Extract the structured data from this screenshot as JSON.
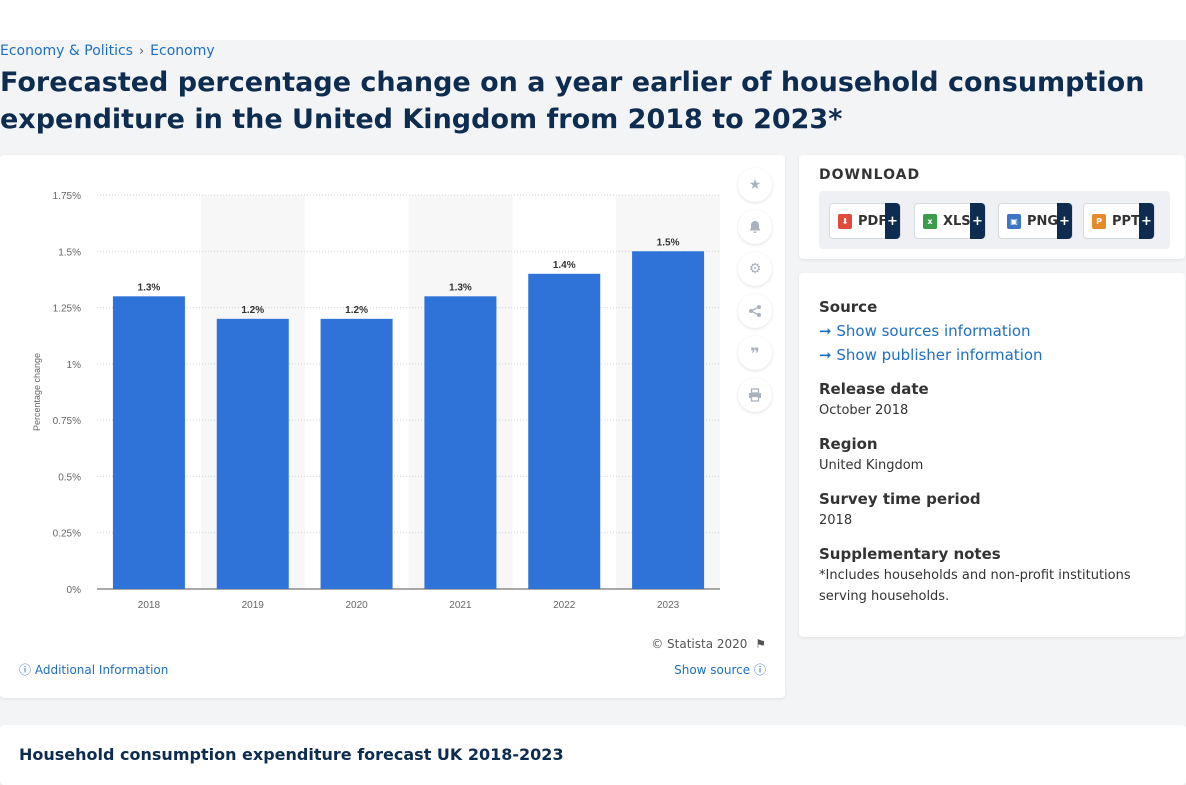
{
  "breadcrumb": {
    "items": [
      "Economy & Politics",
      "Economy"
    ],
    "separator": "›"
  },
  "page_title": "Forecasted percentage change on a year earlier of household consumption expenditure in the United Kingdom from 2018 to 2023*",
  "toolbar": {
    "icons": [
      "star-icon",
      "bell-icon",
      "gear-icon",
      "share-icon",
      "quote-icon",
      "print-icon"
    ]
  },
  "chart_data": {
    "type": "bar",
    "categories": [
      "2018",
      "2019",
      "2020",
      "2021",
      "2022",
      "2023"
    ],
    "values": [
      1.3,
      1.2,
      1.2,
      1.3,
      1.4,
      1.5
    ],
    "data_labels": [
      "1.3%",
      "1.2%",
      "1.2%",
      "1.3%",
      "1.4%",
      "1.5%"
    ],
    "yticks": [
      0,
      0.25,
      0.5,
      0.75,
      1,
      1.25,
      1.5,
      1.75
    ],
    "ytick_labels": [
      "0%",
      "0.25%",
      "0.5%",
      "0.75%",
      "1%",
      "1.25%",
      "1.5%",
      "1.75%"
    ],
    "ylim": [
      0,
      1.75
    ],
    "ylabel": "Percentage change",
    "xlabel": "",
    "bar_color": "#2f72d8",
    "grid": true
  },
  "chart_footer": {
    "copyright": "© Statista 2020",
    "additional_info": "Additional Information",
    "show_source": "Show source"
  },
  "download": {
    "title": "DOWNLOAD",
    "buttons": [
      {
        "label": "PDF",
        "color": "#e04b3b"
      },
      {
        "label": "XLS",
        "color": "#3a9b4a"
      },
      {
        "label": "PNG",
        "color": "#3b77c4"
      },
      {
        "label": "PPT",
        "color": "#e58a2b"
      }
    ],
    "plus": "+"
  },
  "info": {
    "source_heading": "Source",
    "show_sources": "Show sources information",
    "show_publisher": "Show publisher information",
    "release_date_heading": "Release date",
    "release_date": "October 2018",
    "region_heading": "Region",
    "region": "United Kingdom",
    "survey_heading": "Survey time period",
    "survey": "2018",
    "notes_heading": "Supplementary notes",
    "notes": "*Includes households and non-profit institutions serving households."
  },
  "bottom": {
    "title": "Household consumption expenditure forecast UK 2018-2023"
  }
}
